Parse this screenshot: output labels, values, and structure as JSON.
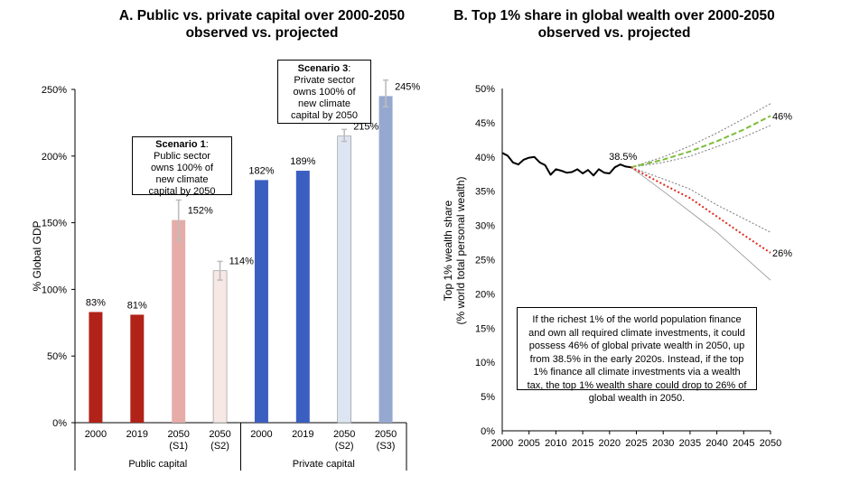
{
  "panelA": {
    "title_line1": "A. Public vs. private capital over 2000-2050",
    "title_line2": "observed vs. projected",
    "ylabel": "% Global GDP",
    "group_public": "Public capital",
    "group_private": "Private capital",
    "annotation_s1": {
      "title": "Scenario 1",
      "suffix": ":",
      "body": [
        "Public sector",
        "owns 100% of",
        "new climate",
        "capital by 2050"
      ]
    },
    "annotation_s3": {
      "title": "Scenario 3",
      "suffix": ":",
      "body": [
        "Private sector",
        "owns 100% of",
        "new climate",
        "capital by 2050"
      ]
    }
  },
  "panelB": {
    "title_line1": "B. Top 1% share in global wealth over 2000-2050",
    "title_line2": "observed vs. projected",
    "ylabel_line1": "Top 1% wealth share",
    "ylabel_line2": "(% world total personal wealth)",
    "annotation_text": "If the richest 1% of the world population finance and own all required climate investments, it could possess 46% of global private wealth in 2050, up from 38.5% in the early 2020s. Instead, if the top 1% finance all climate investments via a wealth tax, the top 1% wealth share could drop to 26% of global wealth in 2050."
  },
  "colors": {
    "public_dark": "#b12218",
    "public_light": "#e6aca8",
    "public_pale": "#f7e8e6",
    "private_dark": "#3b5fc0",
    "private_pale": "#dde4f2",
    "private_mid": "#95a8d0",
    "observed": "#000000",
    "projection_up": "#7cbd3a",
    "projection_down": "#e02a1e",
    "band": "#7a7a7a",
    "error_bar": "#bdbdbd"
  },
  "chart_data": [
    {
      "type": "bar",
      "title": "A. Public vs. private capital over 2000-2050 observed vs. projected",
      "ylabel": "% Global GDP",
      "ylim": [
        0,
        250
      ],
      "yticks": [
        0,
        50,
        100,
        150,
        200,
        250
      ],
      "ytick_labels": [
        "0%",
        "50%",
        "100%",
        "150%",
        "200%",
        "250%"
      ],
      "categories": [
        "2000",
        "2019",
        "2050\n(S1)",
        "2050\n(S2)",
        "2000",
        "2019",
        "2050\n(S2)",
        "2050\n(S3)"
      ],
      "groups": [
        "Public capital",
        "Public capital",
        "Public capital",
        "Public capital",
        "Private capital",
        "Private capital",
        "Private capital",
        "Private capital"
      ],
      "values": [
        83,
        81,
        152,
        114,
        182,
        189,
        215,
        245
      ],
      "value_labels": [
        "83%",
        "81%",
        "152%",
        "114%",
        "182%",
        "189%",
        "215%",
        "245%"
      ],
      "error_low": [
        null,
        null,
        137,
        107,
        null,
        null,
        211,
        237
      ],
      "error_high": [
        null,
        null,
        167,
        121,
        null,
        null,
        220,
        257
      ],
      "bar_colors": [
        "#b12218",
        "#b12218",
        "#e6aca8",
        "#f7e8e6",
        "#3b5fc0",
        "#3b5fc0",
        "#dde4f2",
        "#95a8d0"
      ]
    },
    {
      "type": "line",
      "title": "B. Top 1% share in global wealth over 2000-2050 observed vs. projected",
      "xlabel": "",
      "ylabel": "Top 1% wealth share (% world total personal wealth)",
      "xlim": [
        2000,
        2050
      ],
      "ylim": [
        0,
        50
      ],
      "xticks": [
        2000,
        2005,
        2010,
        2015,
        2020,
        2025,
        2030,
        2035,
        2040,
        2045,
        2050
      ],
      "yticks": [
        0,
        5,
        10,
        15,
        20,
        25,
        30,
        35,
        40,
        45,
        50
      ],
      "ytick_labels": [
        "0%",
        "5%",
        "10%",
        "15%",
        "20%",
        "25%",
        "30%",
        "35%",
        "40%",
        "45%",
        "50%"
      ],
      "point_labels": [
        {
          "text": "38.5%",
          "x": 2022,
          "y": 38.5
        },
        {
          "text": "46%",
          "x": 2050,
          "y": 46
        },
        {
          "text": "26%",
          "x": 2050,
          "y": 26
        }
      ],
      "series": [
        {
          "name": "Observed",
          "style": "solid",
          "x": [
            2000,
            2001,
            2002,
            2003,
            2004,
            2005,
            2006,
            2007,
            2008,
            2009,
            2010,
            2011,
            2012,
            2013,
            2014,
            2015,
            2016,
            2017,
            2018,
            2019,
            2020,
            2021,
            2022,
            2023,
            2024
          ],
          "y": [
            40.6,
            40.2,
            39.2,
            38.9,
            39.6,
            39.9,
            40.0,
            39.2,
            38.8,
            37.4,
            38.2,
            38.0,
            37.7,
            37.8,
            38.2,
            37.6,
            38.1,
            37.3,
            38.2,
            37.7,
            37.6,
            38.5,
            38.9,
            38.6,
            38.5
          ]
        },
        {
          "name": "Projection (top 1% own climate capital)",
          "style": "dashed",
          "x": [
            2024,
            2030,
            2035,
            2040,
            2045,
            2050
          ],
          "y": [
            38.5,
            39.6,
            40.8,
            42.3,
            44.0,
            46.0
          ]
        },
        {
          "name": "Upper band (high)",
          "style": "dotted",
          "x": [
            2024,
            2030,
            2035,
            2040,
            2045,
            2050
          ],
          "y": [
            38.5,
            40.0,
            41.6,
            43.5,
            45.6,
            47.8
          ]
        },
        {
          "name": "Upper band (low)",
          "style": "dotted",
          "x": [
            2024,
            2030,
            2035,
            2040,
            2045,
            2050
          ],
          "y": [
            38.5,
            39.2,
            40.1,
            41.5,
            42.9,
            44.6
          ]
        },
        {
          "name": "Projection (wealth tax)",
          "style": "dotted",
          "x": [
            2024,
            2030,
            2035,
            2040,
            2045,
            2050
          ],
          "y": [
            38.5,
            36.0,
            34.0,
            31.3,
            28.6,
            26.0
          ]
        },
        {
          "name": "Lower band (high)",
          "style": "dotted",
          "x": [
            2024,
            2030,
            2035,
            2040,
            2045,
            2050
          ],
          "y": [
            38.5,
            36.8,
            35.3,
            33.0,
            31.0,
            29.0
          ]
        },
        {
          "name": "Lower band (low)",
          "style": "solid-thin",
          "x": [
            2024,
            2030,
            2035,
            2040,
            2045,
            2050
          ],
          "y": [
            38.5,
            35.0,
            32.0,
            29.0,
            25.5,
            22.0
          ]
        }
      ]
    }
  ]
}
